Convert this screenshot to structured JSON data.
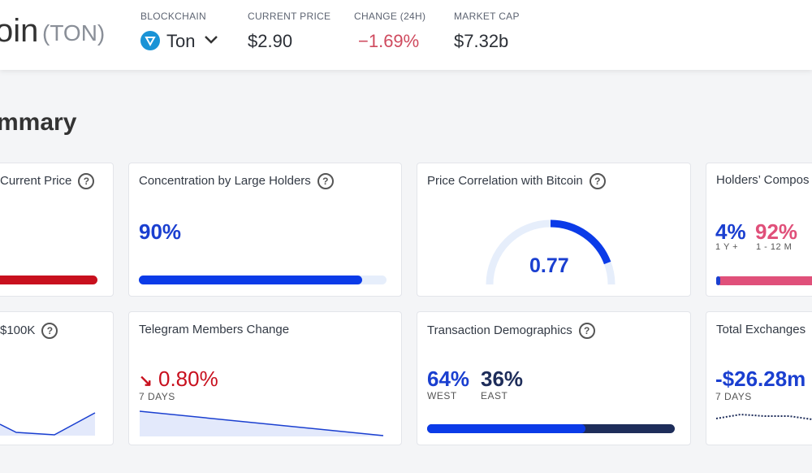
{
  "header": {
    "name": "oin",
    "ticker": "(TON)",
    "stats": [
      {
        "label": "BLOCKCHAIN",
        "value": "Ton"
      },
      {
        "label": "CURRENT PRICE",
        "value": "$2.90"
      },
      {
        "label": "CHANGE (24H)",
        "value": "−1.69%"
      },
      {
        "label": "MARKET CAP",
        "value": "$7.32b"
      }
    ]
  },
  "section_title": "mmary",
  "cards": [
    {
      "title": "Current Price"
    },
    {
      "title": "Concentration by Large Holders",
      "value": "90%"
    },
    {
      "title": "Price Correlation with Bitcoin",
      "value": "0.77"
    },
    {
      "title": "Holders’ Compos",
      "items": [
        {
          "value": "4%",
          "label": "1 Y +"
        },
        {
          "value": "92%",
          "label": "1 - 12 M"
        }
      ]
    },
    {
      "title": "$100K"
    },
    {
      "title": "Telegram Members Change",
      "value": "0.80%",
      "note": "7 DAYS"
    },
    {
      "title": "Transaction Demographics",
      "items": [
        {
          "value": "64%",
          "label": "WEST"
        },
        {
          "value": "36%",
          "label": "EAST"
        }
      ]
    },
    {
      "title": "Total Exchanges",
      "value": "-$26.28m",
      "note": "7 DAYS"
    }
  ]
}
